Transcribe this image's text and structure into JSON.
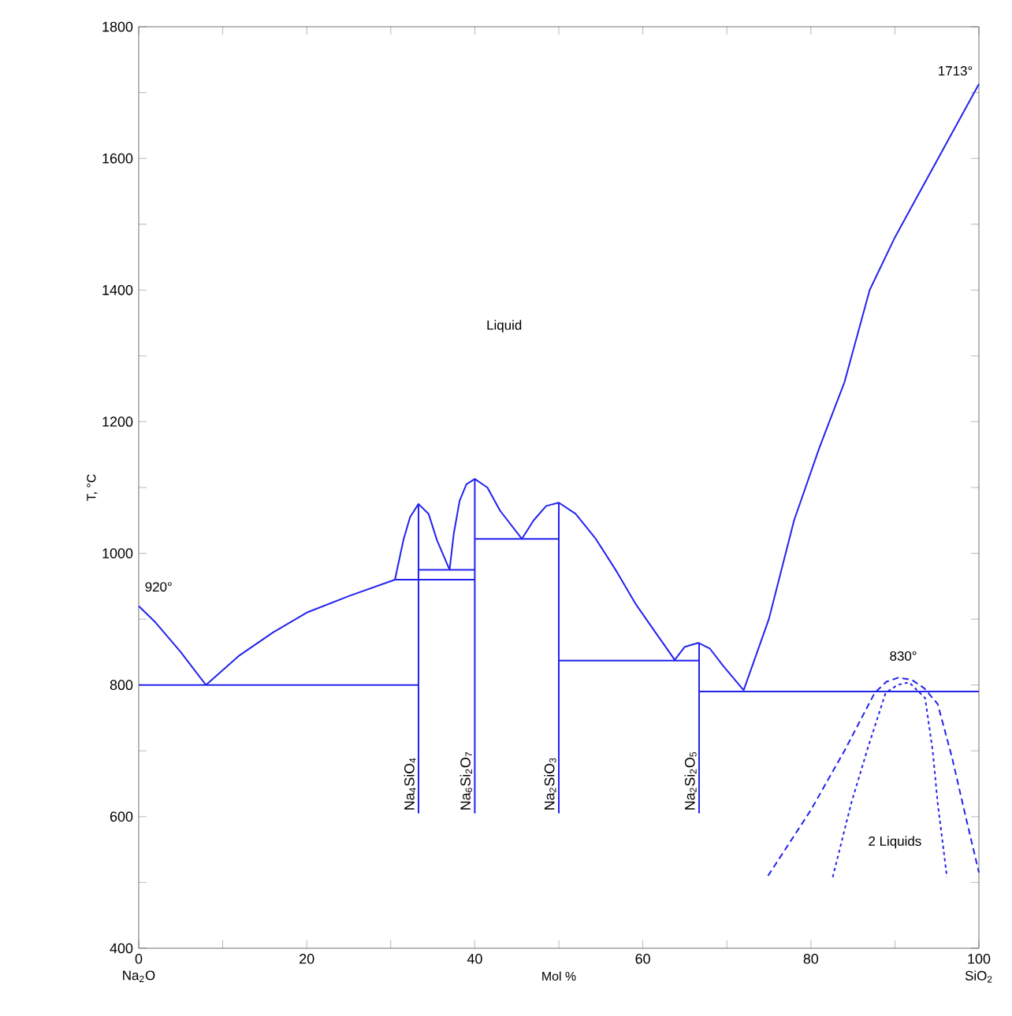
{
  "chart_data": {
    "type": "line",
    "xlabel": "Mol %",
    "ylabel": "T, °C",
    "xlim": [
      0,
      100
    ],
    "ylim": [
      400,
      1800
    ],
    "xticks": [
      0,
      {
        "value": 10,
        "label": null
      },
      20,
      {
        "value": 30,
        "label": null
      },
      40,
      {
        "value": 50,
        "label": null
      },
      60,
      {
        "value": 70,
        "label": null
      },
      80,
      {
        "value": 90,
        "label": null
      },
      100
    ],
    "yticks": [
      400,
      {
        "value": 500,
        "label": null
      },
      600,
      {
        "value": 700,
        "label": null
      },
      800,
      {
        "value": 900,
        "label": null
      },
      1000,
      {
        "value": 1100,
        "label": null
      },
      1200,
      {
        "value": 1300,
        "label": null
      },
      1400,
      {
        "value": 1500,
        "label": null
      },
      1600,
      {
        "value": 1700,
        "label": null
      },
      1800
    ],
    "marker": "none",
    "series": [
      {
        "color": "#2222ee",
        "line_style": "solid",
        "x": [
          0,
          2,
          5,
          8
        ],
        "values": [
          920,
          895,
          850,
          800
        ]
      },
      {
        "color": "#2222ee",
        "line_style": "solid",
        "x": [
          8,
          12,
          16,
          20,
          25,
          30.5,
          31.5,
          32.3,
          33.3,
          34.5,
          35.5,
          37
        ],
        "values": [
          800,
          845,
          880,
          910,
          935,
          960,
          1020,
          1055,
          1075,
          1060,
          1020,
          975
        ]
      },
      {
        "color": "#2222ee",
        "line_style": "solid",
        "x": [
          37,
          37.5,
          38.2,
          39,
          40,
          41.5,
          43,
          45.6,
          47,
          48.5,
          50,
          52,
          54.4,
          57,
          59.1,
          61.5,
          63.8,
          65,
          66.6,
          68,
          69.5,
          72
        ],
        "values": [
          975,
          1030,
          1080,
          1105,
          1113,
          1100,
          1065,
          1022,
          1050,
          1072,
          1077,
          1060,
          1022,
          970,
          924,
          880,
          838,
          858,
          864,
          855,
          830,
          792
        ]
      },
      {
        "color": "#2222ee",
        "line_style": "solid",
        "x": [
          72,
          75,
          78,
          81,
          84,
          87,
          90,
          93,
          96,
          100
        ],
        "values": [
          792,
          900,
          1050,
          1160,
          1260,
          1400,
          1480,
          1550,
          1620,
          1713
        ]
      },
      {
        "color": "#2222ee",
        "line_style": "solid",
        "x": [
          0,
          33.3
        ],
        "values": [
          800,
          800
        ]
      },
      {
        "color": "#2222ee",
        "line_style": "solid",
        "x": [
          30.5,
          40
        ],
        "values": [
          960,
          960
        ]
      },
      {
        "color": "#2222ee",
        "line_style": "solid",
        "x": [
          33.3,
          40
        ],
        "values": [
          975,
          975
        ]
      },
      {
        "color": "#2222ee",
        "line_style": "solid",
        "x": [
          40,
          50
        ],
        "values": [
          1022,
          1022
        ]
      },
      {
        "color": "#2222ee",
        "line_style": "solid",
        "x": [
          50,
          66.7
        ],
        "values": [
          837,
          837
        ]
      },
      {
        "color": "#2222ee",
        "line_style": "solid",
        "x": [
          66.7,
          100
        ],
        "values": [
          790,
          790
        ]
      },
      {
        "name": "Na$_{4}$SiO$_{4}$",
        "color": "#2222ee",
        "line_style": "solid",
        "x": [
          33.3,
          33.3
        ],
        "values": [
          605,
          1075
        ]
      },
      {
        "name": "Na$_{6}$Si$_{2}$O$_{7}$",
        "color": "#2222ee",
        "line_style": "solid",
        "x": [
          40,
          40
        ],
        "values": [
          605,
          1113
        ]
      },
      {
        "name": "Na$_{2}$SiO$_{3}$",
        "color": "#2222ee",
        "line_style": "solid",
        "x": [
          50,
          50
        ],
        "values": [
          605,
          1077
        ]
      },
      {
        "name": "Na$_{2}$Si$_{2}$O$_{5}$",
        "color": "#2222ee",
        "line_style": "solid",
        "x": [
          66.7,
          66.7
        ],
        "values": [
          605,
          864
        ]
      },
      {
        "color": "#2222ee",
        "line_style": "dashed",
        "x": [
          74.9,
          80,
          84,
          87.6,
          89,
          90.4,
          92,
          93.5,
          95.1,
          96.8,
          98.5,
          100
        ],
        "values": [
          510,
          610,
          700,
          788,
          805,
          811,
          808,
          795,
          771,
          690,
          596,
          515
        ]
      },
      {
        "color": "#2222ee",
        "line_style": "dotted",
        "x": [
          82.6,
          84.8,
          86.8,
          88.9,
          90.3,
          91.7,
          93.6,
          94.5,
          95.1,
          96.2
        ],
        "values": [
          508,
          620,
          705,
          788,
          800,
          804,
          780,
          700,
          620,
          508
        ]
      }
    ],
    "annotations": [
      "920°",
      "1713°",
      "830°",
      "Liquid",
      "2 Liquids",
      "Na$_{2}$O",
      "SiO$_{2}$"
    ]
  }
}
